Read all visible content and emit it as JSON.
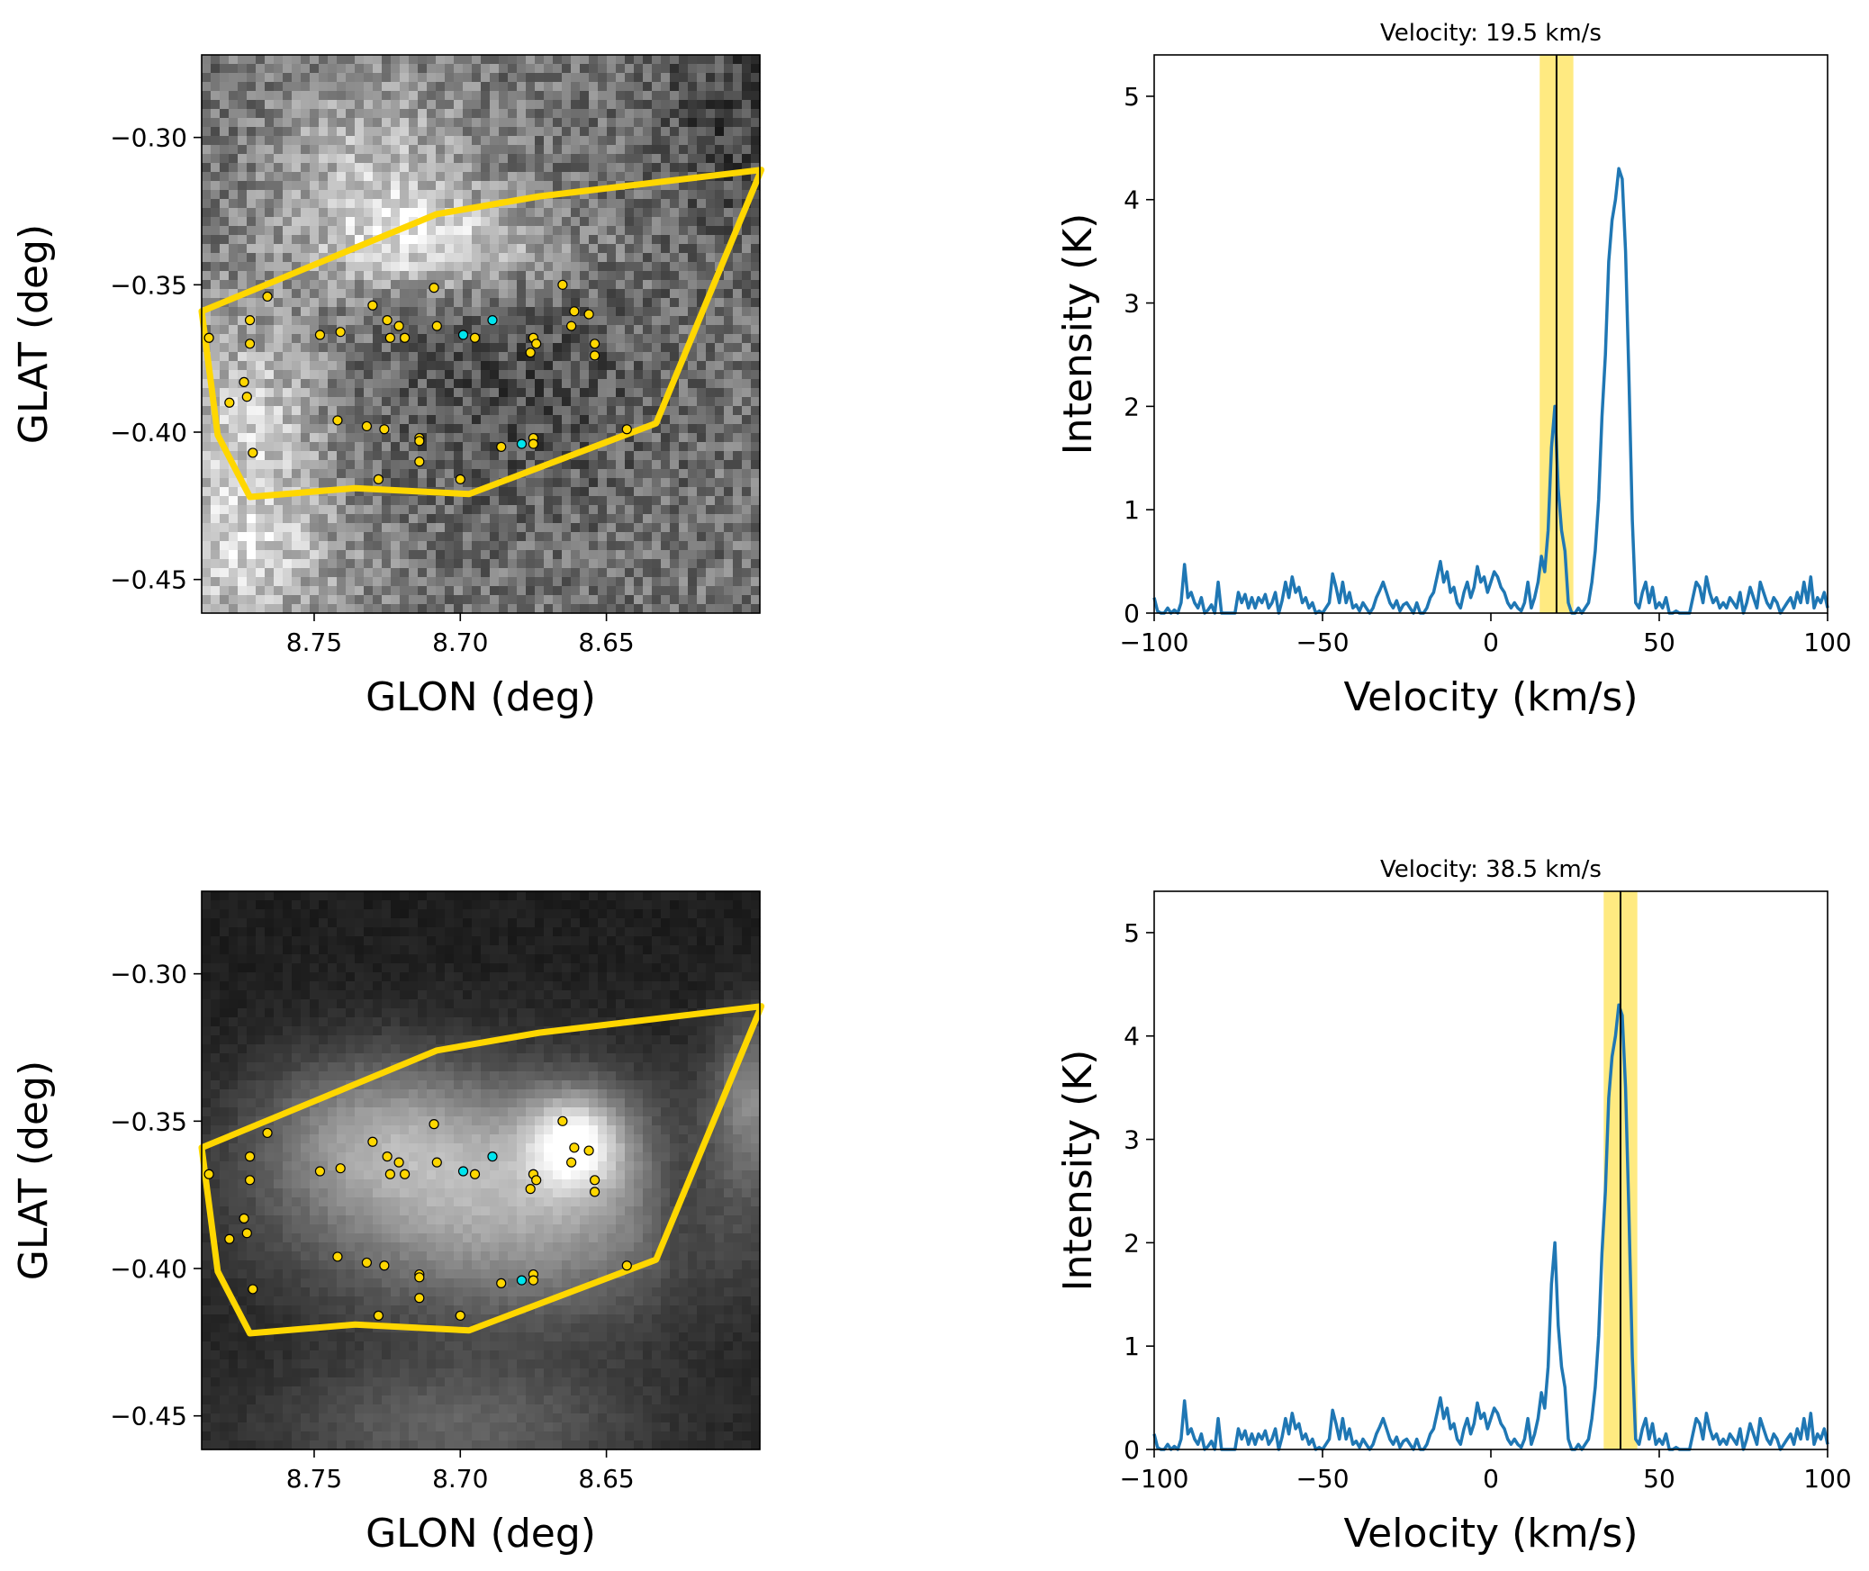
{
  "chart_data": {
    "catalog": {
      "yellow_sources": [
        [
          8.786,
          -0.368
        ],
        [
          8.766,
          -0.354
        ],
        [
          8.772,
          -0.362
        ],
        [
          8.772,
          -0.37
        ],
        [
          8.774,
          -0.383
        ],
        [
          8.773,
          -0.388
        ],
        [
          8.779,
          -0.39
        ],
        [
          8.771,
          -0.407
        ],
        [
          8.748,
          -0.367
        ],
        [
          8.741,
          -0.366
        ],
        [
          8.73,
          -0.357
        ],
        [
          8.725,
          -0.362
        ],
        [
          8.721,
          -0.364
        ],
        [
          8.724,
          -0.368
        ],
        [
          8.719,
          -0.368
        ],
        [
          8.709,
          -0.351
        ],
        [
          8.708,
          -0.364
        ],
        [
          8.695,
          -0.368
        ],
        [
          8.742,
          -0.396
        ],
        [
          8.732,
          -0.398
        ],
        [
          8.726,
          -0.399
        ],
        [
          8.714,
          -0.402
        ],
        [
          8.714,
          -0.403
        ],
        [
          8.714,
          -0.41
        ],
        [
          8.728,
          -0.416
        ],
        [
          8.7,
          -0.416
        ],
        [
          8.686,
          -0.405
        ],
        [
          8.675,
          -0.402
        ],
        [
          8.675,
          -0.404
        ],
        [
          8.665,
          -0.35
        ],
        [
          8.661,
          -0.359
        ],
        [
          8.656,
          -0.36
        ],
        [
          8.662,
          -0.364
        ],
        [
          8.675,
          -0.368
        ],
        [
          8.674,
          -0.37
        ],
        [
          8.676,
          -0.373
        ],
        [
          8.654,
          -0.37
        ],
        [
          8.654,
          -0.374
        ],
        [
          8.643,
          -0.399
        ]
      ],
      "cyan_sources": [
        [
          8.699,
          -0.367
        ],
        [
          8.689,
          -0.362
        ],
        [
          8.679,
          -0.404
        ]
      ],
      "polygon": [
        [
          8.7885,
          -0.359
        ],
        [
          8.783,
          -0.401
        ],
        [
          8.772,
          -0.422
        ],
        [
          8.736,
          -0.419
        ],
        [
          8.697,
          -0.421
        ],
        [
          8.633,
          -0.397
        ],
        [
          8.597,
          -0.311
        ],
        [
          8.673,
          -0.32
        ],
        [
          8.708,
          -0.326
        ]
      ],
      "colors": {
        "yellow": "#ffd700",
        "cyan": "#00e5ee",
        "polygon": "#ffd700"
      }
    },
    "spectrum": {
      "x_start": -100,
      "x_step": 1,
      "intensity": [
        0.15,
        0.02,
        0,
        0,
        0.05,
        0,
        0.03,
        0,
        0.1,
        0.47,
        0.15,
        0.2,
        0.1,
        0.05,
        0.15,
        0,
        0.03,
        0.08,
        0,
        0.3,
        0,
        0,
        0,
        0,
        0,
        0.2,
        0.1,
        0.18,
        0.05,
        0.15,
        0.05,
        0.15,
        0.1,
        0.18,
        0.05,
        0.1,
        0.2,
        0,
        0.12,
        0.3,
        0.15,
        0.35,
        0.2,
        0.25,
        0.1,
        0.15,
        0.05,
        0.1,
        0,
        0.02,
        0,
        0.05,
        0.1,
        0.38,
        0.25,
        0.1,
        0.3,
        0.1,
        0.2,
        0.05,
        0.08,
        0.02,
        0.1,
        0.05,
        0,
        0.05,
        0.15,
        0.22,
        0.3,
        0.2,
        0.1,
        0.05,
        0.12,
        0.02,
        0.08,
        0.1,
        0.05,
        0,
        0.1,
        0,
        0,
        0.05,
        0.15,
        0.2,
        0.35,
        0.5,
        0.3,
        0.4,
        0.2,
        0.25,
        0.1,
        0.05,
        0.2,
        0.3,
        0.15,
        0.25,
        0.45,
        0.3,
        0.35,
        0.2,
        0.3,
        0.4,
        0.35,
        0.25,
        0.2,
        0.1,
        0.05,
        0.1,
        0.05,
        0.02,
        0.1,
        0.3,
        0.05,
        0.15,
        0.3,
        0.55,
        0.4,
        0.8,
        1.6,
        2.0,
        1.2,
        0.8,
        0.6,
        0.1,
        0,
        0,
        0.05,
        0,
        0.05,
        0.1,
        0.3,
        0.6,
        1.1,
        1.9,
        2.5,
        3.4,
        3.8,
        4.0,
        4.3,
        4.2,
        3.5,
        2.3,
        0.9,
        0.1,
        0.05,
        0.2,
        0.3,
        0.1,
        0.25,
        0.05,
        0.1,
        0.05,
        0.15,
        0,
        0,
        0.02,
        0,
        0,
        0,
        0,
        0.15,
        0.3,
        0.25,
        0.1,
        0.35,
        0.2,
        0.1,
        0.15,
        0.05,
        0.1,
        0.05,
        0.15,
        0.1,
        0.05,
        0.2,
        0,
        0.1,
        0.25,
        0.15,
        0.05,
        0.3,
        0.2,
        0.1,
        0.05,
        0.15,
        0.1,
        0,
        0.05,
        0.1,
        0.15,
        0.05,
        0.2,
        0.1,
        0.3,
        0.1,
        0.35,
        0.05,
        0.15,
        0.1,
        0.2,
        0.05
      ],
      "line_color": "#1f77b4"
    },
    "panels": [
      {
        "type": "heatmap",
        "colormap": "gray",
        "xlabel": "GLON (deg)",
        "ylabel": "GLAT (deg)",
        "xlim": [
          8.7885,
          8.5975
        ],
        "ylim": [
          -0.4614,
          -0.272
        ],
        "xticks": [
          8.75,
          8.7,
          8.65
        ],
        "xtick_labels": [
          "8.75",
          "8.70",
          "8.65"
        ],
        "yticks": [
          -0.3,
          -0.35,
          -0.4,
          -0.45
        ],
        "ytick_labels": [
          "−0.30",
          "−0.35",
          "−0.40",
          "−0.45"
        ],
        "channel_velocity": 19.5
      },
      {
        "type": "line",
        "title": "Velocity: 19.5 km/s",
        "xlabel": "Velocity (km/s)",
        "ylabel": "Intensity (K)",
        "xlim": [
          -100,
          100
        ],
        "ylim": [
          0,
          5.4
        ],
        "xticks": [
          -100,
          -50,
          0,
          50,
          100
        ],
        "xtick_labels": [
          "−100",
          "−50",
          "0",
          "50",
          "100"
        ],
        "yticks": [
          0,
          1,
          2,
          3,
          4,
          5
        ],
        "ytick_labels": [
          "0",
          "1",
          "2",
          "3",
          "4",
          "5"
        ],
        "marker_velocity": 19.5,
        "band": [
          14.5,
          24.5
        ],
        "band_color": "#ffe97a"
      },
      {
        "type": "heatmap",
        "colormap": "gray",
        "xlabel": "GLON (deg)",
        "ylabel": "GLAT (deg)",
        "xlim": [
          8.7885,
          8.5975
        ],
        "ylim": [
          -0.4614,
          -0.272
        ],
        "xticks": [
          8.75,
          8.7,
          8.65
        ],
        "xtick_labels": [
          "8.75",
          "8.70",
          "8.65"
        ],
        "yticks": [
          -0.3,
          -0.35,
          -0.4,
          -0.45
        ],
        "ytick_labels": [
          "−0.30",
          "−0.35",
          "−0.40",
          "−0.45"
        ],
        "channel_velocity": 38.5
      },
      {
        "type": "line",
        "title": "Velocity: 38.5 km/s",
        "xlabel": "Velocity (km/s)",
        "ylabel": "Intensity (K)",
        "xlim": [
          -100,
          100
        ],
        "ylim": [
          0,
          5.4
        ],
        "xticks": [
          -100,
          -50,
          0,
          50,
          100
        ],
        "xtick_labels": [
          "−100",
          "−50",
          "0",
          "50",
          "100"
        ],
        "yticks": [
          0,
          1,
          2,
          3,
          4,
          5
        ],
        "ytick_labels": [
          "0",
          "1",
          "2",
          "3",
          "4",
          "5"
        ],
        "marker_velocity": 38.5,
        "band": [
          33.5,
          43.5
        ],
        "band_color": "#ffe97a"
      }
    ]
  }
}
